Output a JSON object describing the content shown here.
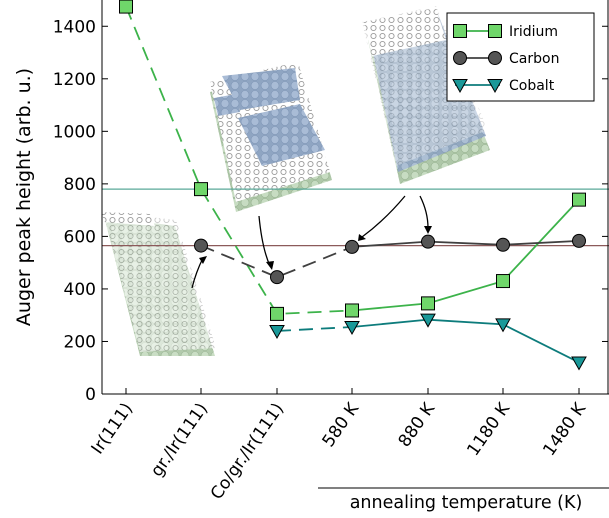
{
  "chart_data": {
    "type": "line",
    "ylabel": "Auger peak height (arb. u.)",
    "ylim": [
      0,
      1500
    ],
    "yticks": [
      0,
      200,
      400,
      600,
      800,
      1000,
      1200,
      1400
    ],
    "categories": [
      "Ir(111)",
      "gr./Ir(111)",
      "Co/gr./Ir(111)",
      "580 K",
      "880 K",
      "1180 K",
      "1480 K"
    ],
    "group_label": "annealing temperature (K)",
    "reference_lines": [
      {
        "value": 780,
        "color": "#5aa999"
      },
      {
        "value": 565,
        "color": "#8c5a5a"
      }
    ],
    "series": [
      {
        "name": "Iridium",
        "marker": "square",
        "color": "#3cb34a",
        "fill": "#6fd66a",
        "segments": [
          {
            "style": "dashed",
            "points": [
              [
                0,
                1475
              ],
              [
                1,
                780
              ],
              [
                2,
                305
              ],
              [
                3,
                318
              ]
            ]
          },
          {
            "style": "solid",
            "points": [
              [
                3,
                318
              ],
              [
                4,
                345
              ],
              [
                5,
                430
              ],
              [
                6,
                740
              ]
            ]
          }
        ]
      },
      {
        "name": "Carbon",
        "marker": "circle",
        "color": "#404040",
        "fill": "#555555",
        "segments": [
          {
            "style": "dashed",
            "points": [
              [
                1,
                565
              ],
              [
                2,
                445
              ],
              [
                3,
                560
              ]
            ]
          },
          {
            "style": "solid",
            "points": [
              [
                3,
                560
              ],
              [
                4,
                580
              ],
              [
                5,
                568
              ],
              [
                6,
                583
              ]
            ]
          }
        ]
      },
      {
        "name": "Cobalt",
        "marker": "triangle-down",
        "color": "#0d7c7c",
        "fill": "#1a9999",
        "segments": [
          {
            "style": "dashed",
            "points": [
              [
                2,
                240
              ],
              [
                3,
                255
              ]
            ]
          },
          {
            "style": "solid",
            "points": [
              [
                3,
                255
              ],
              [
                4,
                283
              ],
              [
                5,
                265
              ],
              [
                6,
                120
              ]
            ]
          }
        ]
      }
    ],
    "legend": {
      "position": "top-right",
      "entries": [
        "Iridium",
        "Carbon",
        "Cobalt"
      ]
    },
    "insets": [
      {
        "name": "graphene-on-iridium-illustration"
      },
      {
        "name": "cobalt-islands-on-graphene-illustration"
      },
      {
        "name": "intercalated-cobalt-layer-illustration"
      }
    ]
  }
}
